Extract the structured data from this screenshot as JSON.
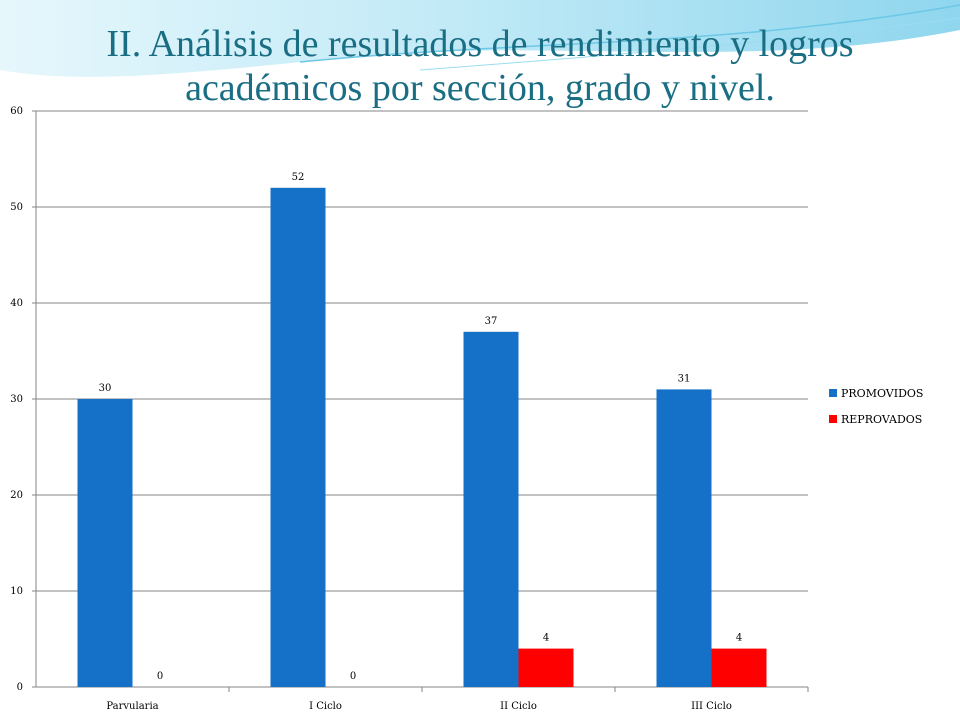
{
  "slide": {
    "title": "II. Análisis de resultados de rendimiento y logros académicos por sección, grado y nivel."
  },
  "colors": {
    "title": "#1a6e84",
    "promovidos": "#1570c8",
    "reprovados": "#ff0000",
    "gridline": "#868686",
    "wave_light": "#c8ecf7",
    "wave_mid": "#7fd0ea"
  },
  "chart_data": {
    "type": "bar",
    "categories": [
      "Parvularia",
      "I Ciclo",
      "II Ciclo",
      "III Ciclo"
    ],
    "series": [
      {
        "name": "PROMOVIDOS",
        "values": [
          30,
          52,
          37,
          31
        ]
      },
      {
        "name": "REPROVADOS",
        "values": [
          0,
          0,
          4,
          4
        ]
      }
    ],
    "ylim": [
      0,
      60
    ],
    "yticks": [
      0,
      10,
      20,
      30,
      40,
      50,
      60
    ],
    "grid": true,
    "legend_position": "right",
    "data_labels": true
  }
}
